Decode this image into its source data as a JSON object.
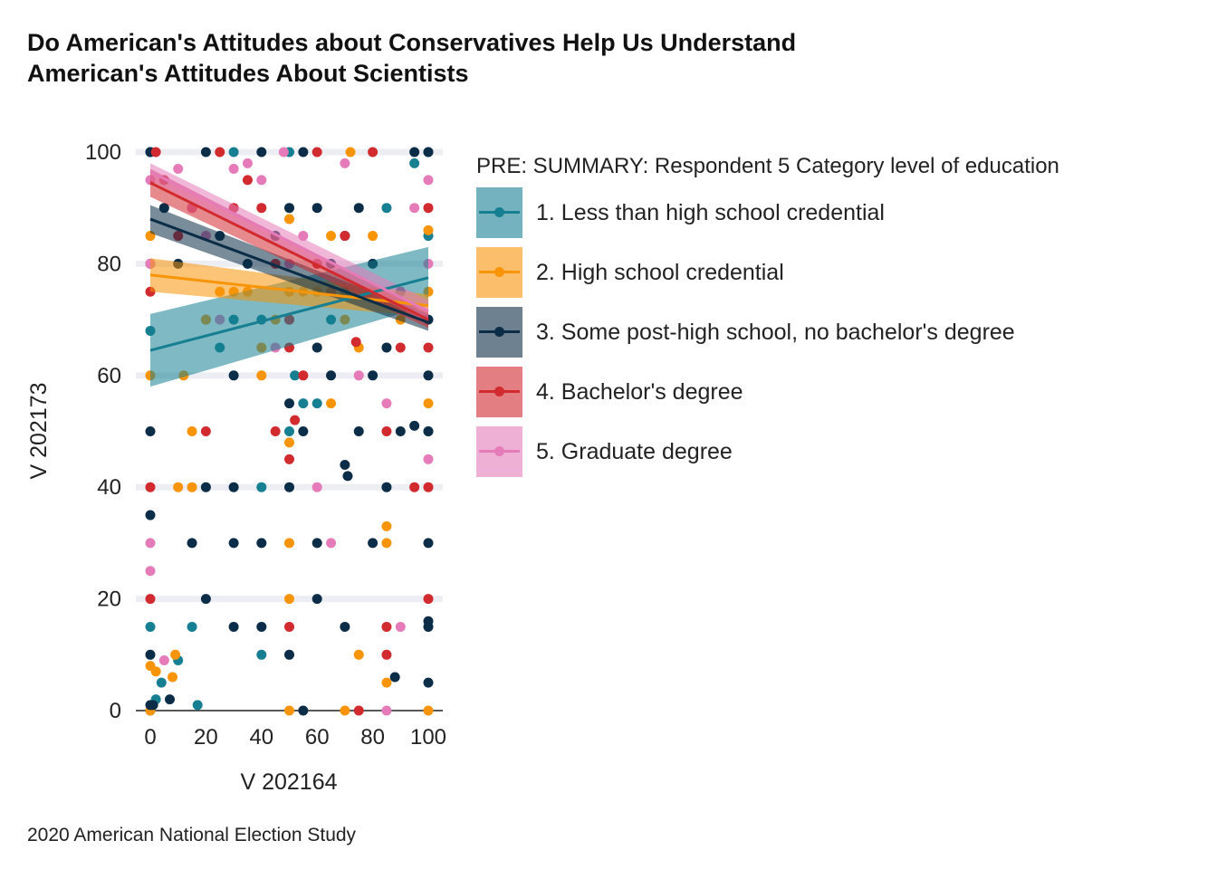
{
  "title_lines": [
    "Do American's Attitudes about Conservatives Help Us Understand",
    "American's Attitudes About Scientists"
  ],
  "caption": "2020 American National Election Study",
  "legend": {
    "title": "PRE: SUMMARY: Respondent 5 Category level of education",
    "items": [
      {
        "label": "1. Less than high school credential",
        "color": "#167f92"
      },
      {
        "label": "2. High school credential",
        "color": "#f89408"
      },
      {
        "label": "3. Some post-high school, no bachelor's degree",
        "color": "#0b2d47"
      },
      {
        "label": "4. Bachelor's degree",
        "color": "#d12a2f"
      },
      {
        "label": "5. Graduate degree",
        "color": "#e57cb9"
      }
    ]
  },
  "chart_data": {
    "type": "scatter",
    "xlabel": "V 202164",
    "ylabel": "V 202173",
    "xlim": [
      0,
      100
    ],
    "ylim": [
      0,
      100
    ],
    "xticks": [
      0,
      20,
      40,
      60,
      80,
      100
    ],
    "yticks": [
      0,
      20,
      40,
      60,
      80,
      100
    ],
    "grid": "horizontal",
    "legend_position": "right",
    "series": [
      {
        "name": "1. Less than high school credential",
        "color": "#167f92",
        "trend": {
          "x": [
            0,
            100
          ],
          "y": [
            64.5,
            77.5
          ],
          "ci_low": [
            58.0,
            72.5
          ],
          "ci_high": [
            71.0,
            83.0
          ]
        },
        "points": [
          [
            0,
            0
          ],
          [
            0,
            15
          ],
          [
            0,
            100
          ],
          [
            0,
            68
          ],
          [
            2,
            2
          ],
          [
            4,
            5
          ],
          [
            10,
            9
          ],
          [
            15,
            15
          ],
          [
            17,
            1
          ],
          [
            20,
            70
          ],
          [
            25,
            65
          ],
          [
            30,
            100
          ],
          [
            30,
            70
          ],
          [
            40,
            10
          ],
          [
            40,
            40
          ],
          [
            40,
            70
          ],
          [
            50,
            50
          ],
          [
            50,
            100
          ],
          [
            52,
            60
          ],
          [
            55,
            55
          ],
          [
            60,
            55
          ],
          [
            65,
            70
          ],
          [
            70,
            75
          ],
          [
            85,
            90
          ],
          [
            95,
            98
          ],
          [
            100,
            50
          ],
          [
            100,
            100
          ],
          [
            100,
            85
          ]
        ]
      },
      {
        "name": "2. High school credential",
        "color": "#f89408",
        "trend": {
          "x": [
            0,
            100
          ],
          "y": [
            78.0,
            72.5
          ],
          "ci_low": [
            75.0,
            70.5
          ],
          "ci_high": [
            81.0,
            74.5
          ]
        },
        "points": [
          [
            0,
            0
          ],
          [
            0,
            8
          ],
          [
            0,
            60
          ],
          [
            0,
            85
          ],
          [
            2,
            7
          ],
          [
            8,
            6
          ],
          [
            9,
            10
          ],
          [
            10,
            40
          ],
          [
            12,
            60
          ],
          [
            15,
            40
          ],
          [
            15,
            50
          ],
          [
            20,
            70
          ],
          [
            25,
            75
          ],
          [
            30,
            75
          ],
          [
            35,
            75
          ],
          [
            40,
            60
          ],
          [
            40,
            65
          ],
          [
            45,
            70
          ],
          [
            50,
            0
          ],
          [
            50,
            20
          ],
          [
            50,
            30
          ],
          [
            50,
            48
          ],
          [
            50,
            75
          ],
          [
            50,
            88
          ],
          [
            55,
            75
          ],
          [
            60,
            75
          ],
          [
            65,
            55
          ],
          [
            65,
            85
          ],
          [
            70,
            0
          ],
          [
            70,
            70
          ],
          [
            72,
            100
          ],
          [
            75,
            10
          ],
          [
            75,
            65
          ],
          [
            80,
            85
          ],
          [
            85,
            5
          ],
          [
            85,
            30
          ],
          [
            85,
            33
          ],
          [
            90,
            70
          ],
          [
            100,
            0
          ],
          [
            100,
            55
          ],
          [
            100,
            86
          ],
          [
            100,
            75
          ]
        ]
      },
      {
        "name": "3. Some post-high school, no bachelor's degree",
        "color": "#0b2d47",
        "trend": {
          "x": [
            0,
            100
          ],
          "y": [
            88.0,
            69.5
          ],
          "ci_low": [
            85.5,
            68.0
          ],
          "ci_high": [
            90.5,
            71.0
          ]
        },
        "points": [
          [
            0,
            1
          ],
          [
            0,
            10
          ],
          [
            0,
            35
          ],
          [
            0,
            50
          ],
          [
            0,
            100
          ],
          [
            0,
            80
          ],
          [
            1,
            1
          ],
          [
            5,
            90
          ],
          [
            7,
            2
          ],
          [
            10,
            80
          ],
          [
            15,
            30
          ],
          [
            20,
            20
          ],
          [
            20,
            40
          ],
          [
            20,
            100
          ],
          [
            25,
            85
          ],
          [
            30,
            15
          ],
          [
            30,
            30
          ],
          [
            30,
            60
          ],
          [
            30,
            40
          ],
          [
            35,
            80
          ],
          [
            40,
            15
          ],
          [
            40,
            30
          ],
          [
            40,
            100
          ],
          [
            45,
            85
          ],
          [
            50,
            10
          ],
          [
            50,
            40
          ],
          [
            50,
            55
          ],
          [
            50,
            70
          ],
          [
            50,
            90
          ],
          [
            55,
            0
          ],
          [
            55,
            50
          ],
          [
            55,
            100
          ],
          [
            60,
            20
          ],
          [
            60,
            30
          ],
          [
            60,
            65
          ],
          [
            60,
            90
          ],
          [
            65,
            60
          ],
          [
            65,
            80
          ],
          [
            70,
            15
          ],
          [
            70,
            44
          ],
          [
            70,
            85
          ],
          [
            71,
            42
          ],
          [
            75,
            50
          ],
          [
            75,
            90
          ],
          [
            80,
            30
          ],
          [
            80,
            60
          ],
          [
            80,
            80
          ],
          [
            85,
            40
          ],
          [
            85,
            65
          ],
          [
            88,
            6
          ],
          [
            90,
            50
          ],
          [
            90,
            75
          ],
          [
            95,
            100
          ],
          [
            95,
            51
          ],
          [
            100,
            5
          ],
          [
            100,
            15
          ],
          [
            100,
            16
          ],
          [
            100,
            30
          ],
          [
            100,
            50
          ],
          [
            100,
            60
          ],
          [
            100,
            70
          ],
          [
            100,
            100
          ]
        ]
      },
      {
        "name": "4. Bachelor's degree",
        "color": "#d12a2f",
        "trend": {
          "x": [
            0,
            100
          ],
          "y": [
            94.5,
            70.0
          ],
          "ci_low": [
            92.0,
            68.5
          ],
          "ci_high": [
            97.0,
            71.5
          ]
        },
        "points": [
          [
            0,
            20
          ],
          [
            0,
            40
          ],
          [
            0,
            75
          ],
          [
            2,
            100
          ],
          [
            5,
            95
          ],
          [
            10,
            85
          ],
          [
            15,
            90
          ],
          [
            20,
            50
          ],
          [
            25,
            100
          ],
          [
            30,
            90
          ],
          [
            35,
            95
          ],
          [
            40,
            90
          ],
          [
            45,
            80
          ],
          [
            45,
            50
          ],
          [
            50,
            15
          ],
          [
            50,
            45
          ],
          [
            50,
            65
          ],
          [
            50,
            70
          ],
          [
            52,
            52
          ],
          [
            55,
            60
          ],
          [
            60,
            100
          ],
          [
            60,
            80
          ],
          [
            65,
            75
          ],
          [
            70,
            85
          ],
          [
            74,
            66
          ],
          [
            75,
            0
          ],
          [
            80,
            100
          ],
          [
            85,
            10
          ],
          [
            85,
            15
          ],
          [
            85,
            50
          ],
          [
            90,
            65
          ],
          [
            95,
            40
          ],
          [
            100,
            20
          ],
          [
            100,
            65
          ],
          [
            100,
            90
          ],
          [
            100,
            40
          ]
        ]
      },
      {
        "name": "5. Graduate degree",
        "color": "#e57cb9",
        "trend": {
          "x": [
            0,
            100
          ],
          "y": [
            96.5,
            71.5
          ],
          "ci_low": [
            95.0,
            69.5
          ],
          "ci_high": [
            98.0,
            73.5
          ]
        },
        "points": [
          [
            0,
            25
          ],
          [
            0,
            30
          ],
          [
            0,
            80
          ],
          [
            0,
            95
          ],
          [
            5,
            9
          ],
          [
            10,
            97
          ],
          [
            15,
            90
          ],
          [
            20,
            85
          ],
          [
            25,
            70
          ],
          [
            30,
            97
          ],
          [
            35,
            98
          ],
          [
            40,
            95
          ],
          [
            45,
            65
          ],
          [
            48,
            100
          ],
          [
            50,
            80
          ],
          [
            55,
            85
          ],
          [
            60,
            40
          ],
          [
            65,
            30
          ],
          [
            70,
            98
          ],
          [
            75,
            60
          ],
          [
            80,
            75
          ],
          [
            85,
            0
          ],
          [
            85,
            55
          ],
          [
            90,
            15
          ],
          [
            95,
            90
          ],
          [
            100,
            45
          ],
          [
            100,
            80
          ],
          [
            100,
            95
          ]
        ]
      }
    ]
  }
}
